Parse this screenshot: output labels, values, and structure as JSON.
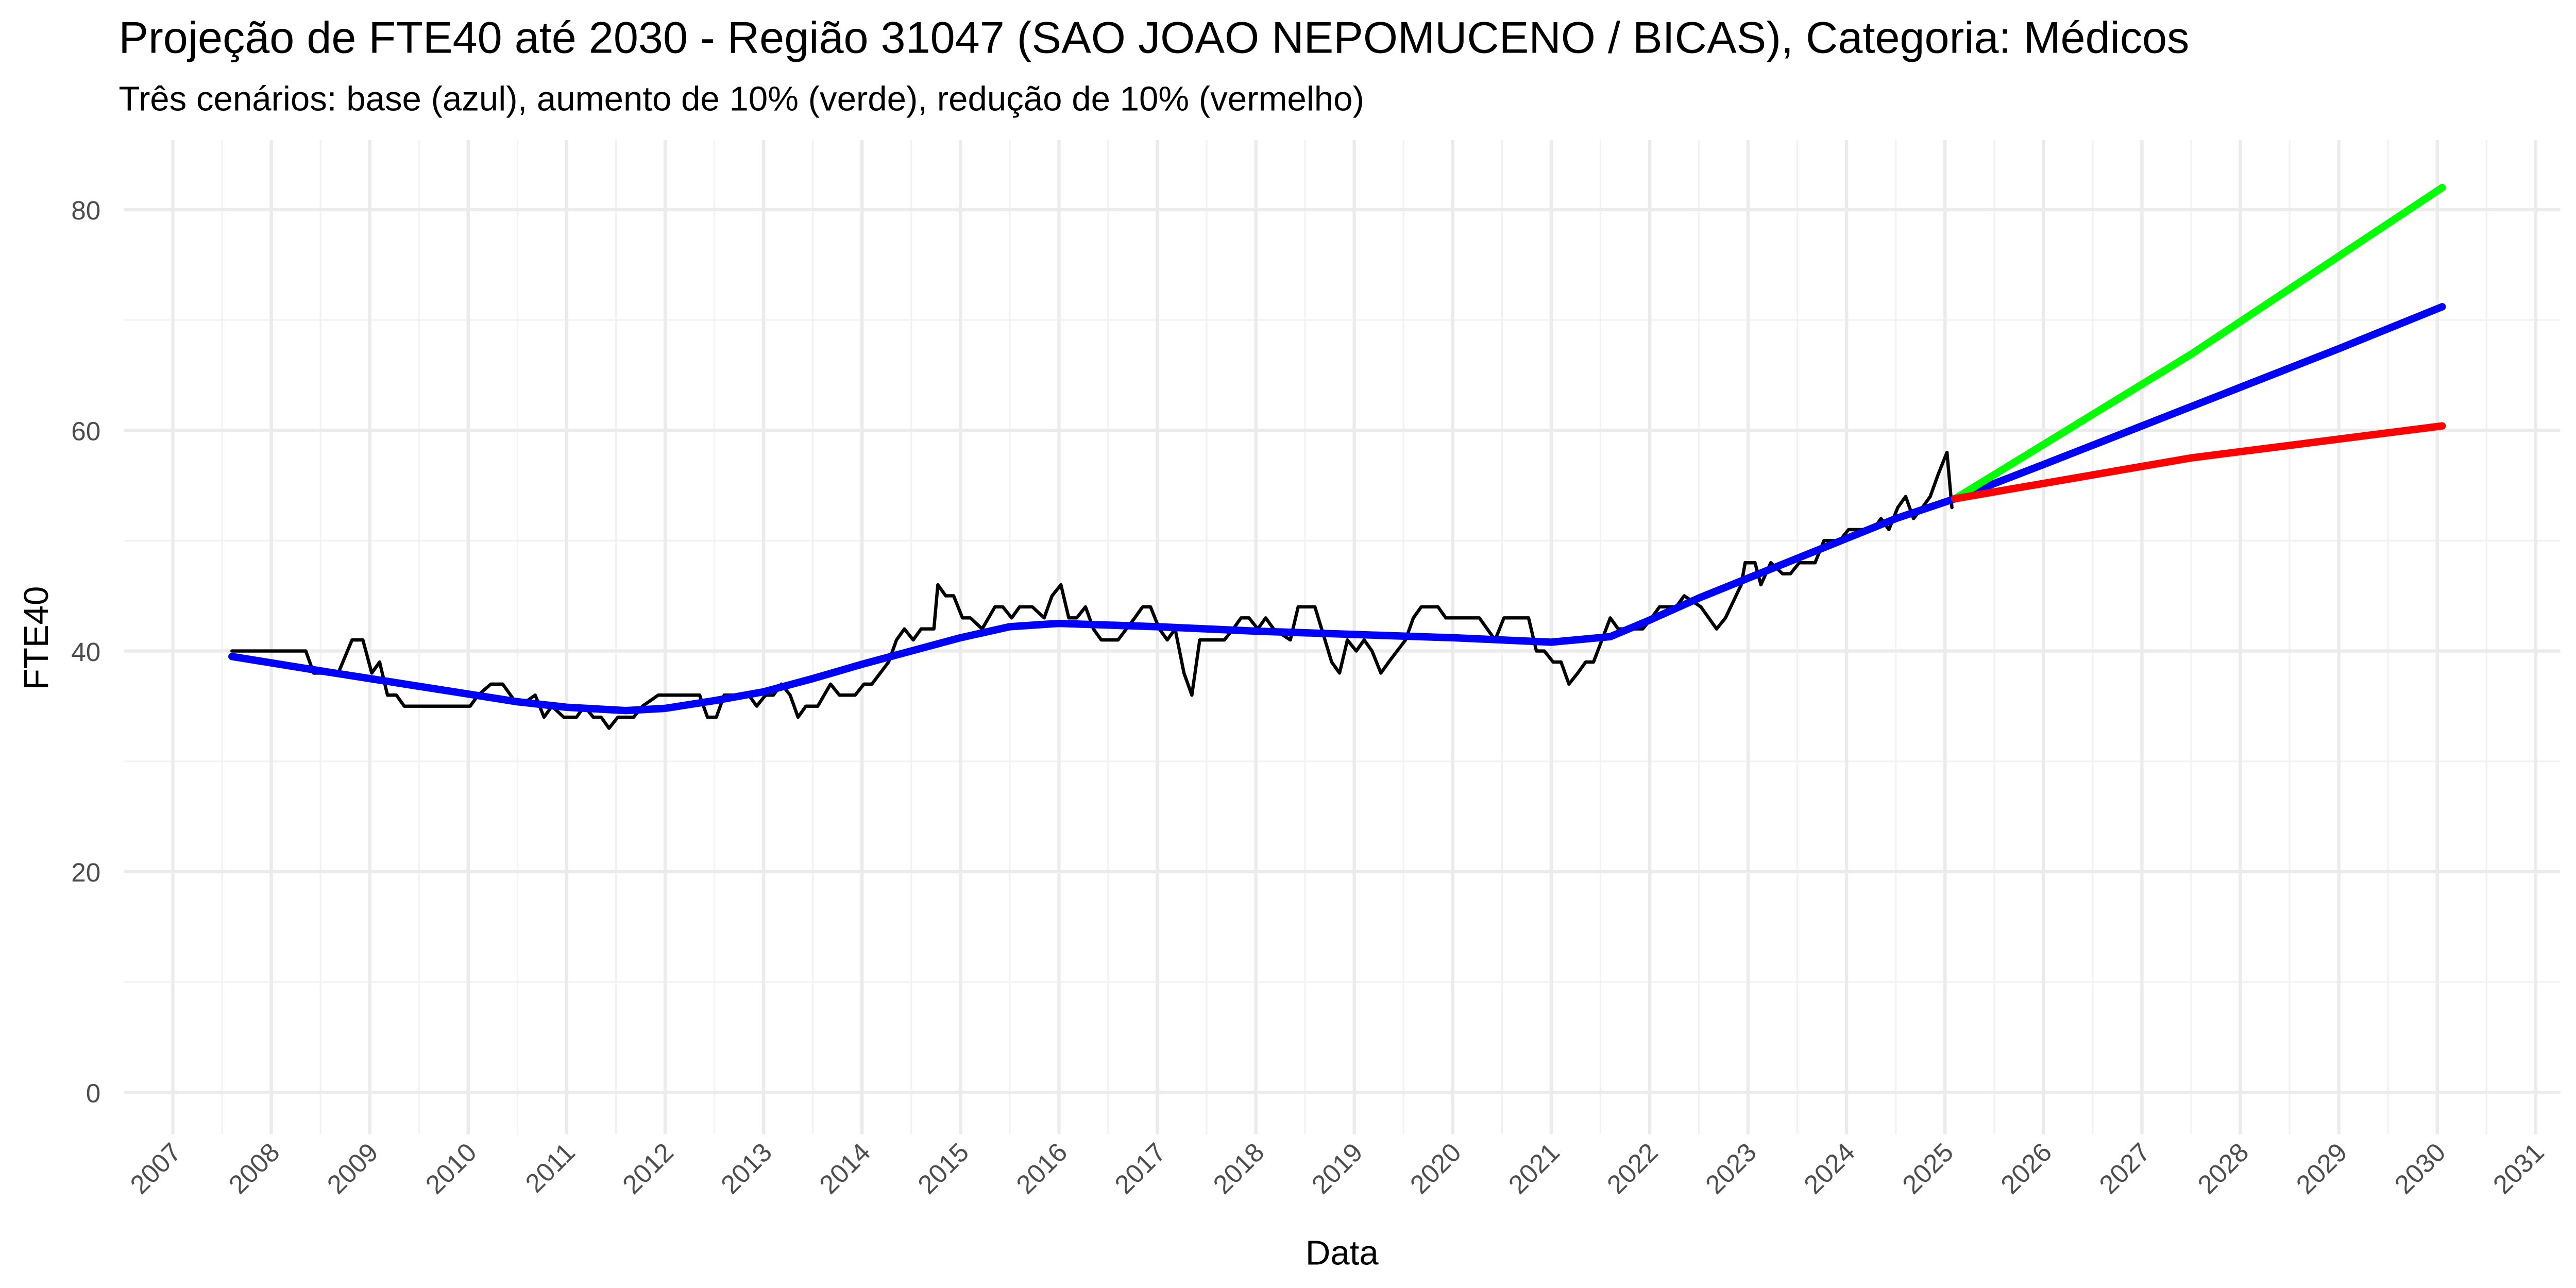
{
  "chart_data": {
    "type": "line",
    "title": "Projeção de FTE40 até 2030 - Região 31047 (SAO JOAO NEPOMUCENO / BICAS), Categoria: Médicos",
    "subtitle": "Três cenários: base (azul), aumento de 10% (verde), redução de 10% (vermelho)",
    "x_label": "Data",
    "y_label": "FTE40",
    "xlim": [
      2006.5,
      2031.25
    ],
    "xticks": [
      2007,
      2008,
      2009,
      2010,
      2011,
      2012,
      2013,
      2014,
      2015,
      2016,
      2017,
      2018,
      2019,
      2020,
      2021,
      2022,
      2023,
      2024,
      2025,
      2026,
      2027,
      2028,
      2029,
      2030,
      2031
    ],
    "ylim": [
      -3.8,
      86.3
    ],
    "yticks": [
      0,
      20,
      40,
      60,
      80
    ],
    "grid": true,
    "series": [
      {
        "color": "#000000",
        "x": [
          2007.6,
          2007.77,
          2008.02,
          2008.1,
          2008.35,
          2008.43,
          2008.68,
          2008.82,
          2008.93,
          2009.02,
          2009.1,
          2009.18,
          2009.27,
          2009.35,
          2010.02,
          2010.1,
          2010.23,
          2010.35,
          2010.47,
          2010.6,
          2010.68,
          2010.77,
          2010.85,
          2010.97,
          2011.1,
          2011.18,
          2011.27,
          2011.35,
          2011.43,
          2011.52,
          2011.68,
          2011.77,
          2011.93,
          2012.35,
          2012.43,
          2012.52,
          2012.6,
          2012.85,
          2012.93,
          2013.02,
          2013.1,
          2013.18,
          2013.27,
          2013.35,
          2013.43,
          2013.55,
          2013.68,
          2013.77,
          2013.93,
          2014.02,
          2014.1,
          2014.27,
          2014.35,
          2014.43,
          2014.52,
          2014.6,
          2014.73,
          2014.77,
          2014.85,
          2014.93,
          2015.02,
          2015.1,
          2015.22,
          2015.35,
          2015.43,
          2015.52,
          2015.6,
          2015.73,
          2015.85,
          2015.93,
          2016.02,
          2016.1,
          2016.18,
          2016.27,
          2016.35,
          2016.43,
          2016.6,
          2016.77,
          2016.85,
          2016.93,
          2017.02,
          2017.1,
          2017.18,
          2017.27,
          2017.35,
          2017.43,
          2017.68,
          2017.77,
          2017.85,
          2017.93,
          2018.02,
          2018.1,
          2018.18,
          2018.35,
          2018.43,
          2018.6,
          2018.77,
          2018.85,
          2018.93,
          2019.02,
          2019.1,
          2019.18,
          2019.27,
          2019.35,
          2019.52,
          2019.6,
          2019.68,
          2019.85,
          2019.93,
          2020.27,
          2020.43,
          2020.52,
          2020.77,
          2020.85,
          2020.93,
          2021.02,
          2021.1,
          2021.18,
          2021.27,
          2021.35,
          2021.43,
          2021.6,
          2021.68,
          2021.85,
          2021.93,
          2022.02,
          2022.1,
          2022.27,
          2022.35,
          2022.52,
          2022.6,
          2022.68,
          2022.77,
          2022.93,
          2022.97,
          2023.07,
          2023.13,
          2023.23,
          2023.35,
          2023.43,
          2023.52,
          2023.68,
          2023.77,
          2023.93,
          2024.02,
          2024.1,
          2024.27,
          2024.35,
          2024.43,
          2024.52,
          2024.6,
          2024.68,
          2024.77,
          2024.85,
          2024.93,
          2025.02,
          2025.07
        ],
        "values": [
          40,
          40,
          40,
          40,
          40,
          38,
          38,
          41,
          41,
          38,
          39,
          36,
          36,
          35,
          35,
          36,
          37,
          37,
          35.5,
          35.5,
          36,
          34,
          35,
          34,
          34,
          35,
          34,
          34,
          33,
          34,
          34,
          35,
          36,
          36,
          34,
          34,
          36,
          36,
          35,
          36,
          36,
          37,
          36,
          34,
          35,
          35,
          37,
          36,
          36,
          37,
          37,
          39,
          41,
          42,
          41,
          42,
          42,
          46,
          45,
          45,
          43,
          43,
          42,
          44,
          44,
          43,
          44,
          44,
          43,
          45,
          46,
          43,
          43,
          44,
          42,
          41,
          41,
          43,
          44,
          44,
          42,
          41,
          42,
          38,
          36,
          41,
          41,
          42,
          43,
          43,
          42,
          43,
          42,
          41,
          44,
          44,
          39,
          38,
          41,
          40,
          41,
          40,
          38,
          39,
          41,
          43,
          44,
          44,
          43,
          43,
          41,
          43,
          43,
          40,
          40,
          39,
          39,
          37,
          38,
          39,
          39,
          43,
          42,
          42,
          42,
          43,
          44,
          44,
          45,
          44,
          43,
          42,
          43,
          46,
          48,
          48,
          46,
          48,
          47,
          47,
          48,
          48,
          50,
          50,
          51,
          51,
          51,
          52,
          51,
          53,
          54,
          52,
          53,
          54,
          56,
          58,
          53
        ]
      },
      {
        "color": "#0000ff",
        "x": [
          2007.6,
          2008.5,
          2009.5,
          2010.5,
          2011.0,
          2011.6,
          2012.0,
          2012.5,
          2013.0,
          2013.5,
          2014.0,
          2014.5,
          2015.0,
          2015.5,
          2016.0,
          2017.0,
          2018.0,
          2019.0,
          2020.0,
          2021.0,
          2021.6,
          2022.0,
          2022.5,
          2023.0,
          2023.5,
          2024.0,
          2024.5,
          2025.1,
          2026.0,
          2027.0,
          2028.0,
          2029.0,
          2030.05
        ],
        "values": [
          39.5,
          38.2,
          36.8,
          35.4,
          34.9,
          34.6,
          34.8,
          35.5,
          36.3,
          37.5,
          38.8,
          40.0,
          41.2,
          42.2,
          42.5,
          42.2,
          41.8,
          41.5,
          41.2,
          40.8,
          41.3,
          42.8,
          44.8,
          46.6,
          48.4,
          50.2,
          52.0,
          53.8,
          56.9,
          60.4,
          63.9,
          67.4,
          71.2
        ]
      },
      {
        "color": "#00ff00",
        "x": [
          2025.1,
          2027.5,
          2030.05
        ],
        "values": [
          53.8,
          66.9,
          82.0
        ]
      },
      {
        "color": "#ff0000",
        "x": [
          2025.1,
          2027.5,
          2030.05
        ],
        "values": [
          53.8,
          57.5,
          60.4
        ]
      }
    ]
  }
}
